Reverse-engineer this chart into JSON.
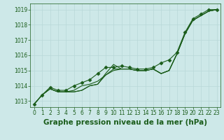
{
  "background_color": "#cde8e8",
  "grid_color": "#b8d8d8",
  "line_color": "#1a5c1a",
  "title": "Graphe pression niveau de la mer (hPa)",
  "xlim": [
    -0.5,
    23.5
  ],
  "ylim": [
    1012.6,
    1019.4
  ],
  "yticks": [
    1013,
    1014,
    1015,
    1016,
    1017,
    1018,
    1019
  ],
  "xticks": [
    0,
    1,
    2,
    3,
    4,
    5,
    6,
    7,
    8,
    9,
    10,
    11,
    12,
    13,
    14,
    15,
    16,
    17,
    18,
    19,
    20,
    21,
    22,
    23
  ],
  "series": [
    [
      1012.8,
      1013.4,
      1013.8,
      1013.6,
      1013.6,
      1013.6,
      1013.7,
      1014.0,
      1014.1,
      1014.7,
      1015.0,
      1015.1,
      1015.1,
      1015.0,
      1015.0,
      1015.1,
      1014.8,
      1015.0,
      1016.1,
      1017.4,
      1018.3,
      1018.6,
      1018.9,
      1019.0
    ],
    [
      1012.8,
      1013.4,
      1013.8,
      1013.6,
      1013.6,
      1013.6,
      1013.7,
      1014.0,
      1014.1,
      1014.8,
      1015.4,
      1015.1,
      1015.1,
      1015.0,
      1015.0,
      1015.1,
      1014.8,
      1015.0,
      1016.1,
      1017.4,
      1018.3,
      1018.6,
      1018.9,
      1019.0
    ],
    [
      1012.8,
      1013.4,
      1013.8,
      1013.6,
      1013.6,
      1013.7,
      1014.0,
      1014.1,
      1014.3,
      1014.7,
      1015.1,
      1015.1,
      1015.1,
      1015.0,
      1015.0,
      1015.1,
      1014.8,
      1015.0,
      1016.1,
      1017.4,
      1018.3,
      1018.6,
      1018.9,
      1019.0
    ],
    [
      1012.8,
      1013.4,
      1013.9,
      1013.7,
      1013.7,
      1014.0,
      1014.2,
      1014.4,
      1014.8,
      1015.2,
      1015.2,
      1015.3,
      1015.2,
      1015.1,
      1015.1,
      1015.2,
      1015.5,
      1015.7,
      1016.2,
      1017.5,
      1018.4,
      1018.7,
      1019.0,
      1019.0
    ]
  ],
  "marker_series_idx": 3,
  "markers": "D",
  "markersize": 2.5,
  "linewidth": 0.8,
  "title_fontsize": 7.5,
  "tick_fontsize": 5.5
}
